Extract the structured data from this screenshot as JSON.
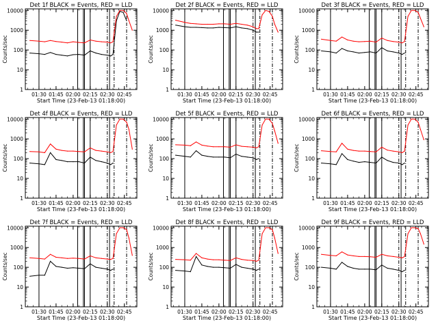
{
  "figure": {
    "xlabel": "Start Time (23-Feb-13 01:18:00)",
    "ylabel": "Counts/sec",
    "tick_labels_x": [
      "01:30",
      "01:45",
      "02:00",
      "02:15",
      "02:30",
      "02:45"
    ],
    "tick_labels_y": [
      "1",
      "10",
      "100",
      "1000",
      "10000"
    ],
    "colors": {
      "events": "#000000",
      "lld": "#ff0000",
      "axes": "#000000",
      "background": "#ffffff"
    }
  },
  "chart_data": [
    {
      "type": "line",
      "title": "Det 1f BLACK = Events, RED = LLD",
      "xlabel": "Start Time (23-Feb-13 01:18:00)",
      "ylabel": "Counts/sec",
      "xlim": [
        "01:18",
        "02:56"
      ],
      "ylim": [
        1,
        12000
      ],
      "yscale": "log",
      "x": [
        "01:22",
        "01:30",
        "01:35",
        "01:40",
        "01:45",
        "01:50",
        "01:55",
        "02:00",
        "02:05",
        "02:10",
        "02:15",
        "02:20",
        "02:25",
        "02:30",
        "02:33",
        "02:35",
        "02:38",
        "02:41",
        "02:44",
        "02:47",
        "02:49",
        "02:52"
      ],
      "series": [
        {
          "name": "Events",
          "values": [
            70,
            65,
            60,
            75,
            60,
            55,
            50,
            58,
            60,
            55,
            90,
            70,
            60,
            55,
            50,
            60,
            3000,
            9000,
            8000,
            3000,
            null,
            null
          ]
        },
        {
          "name": "LLD",
          "values": [
            300,
            280,
            260,
            300,
            270,
            250,
            230,
            260,
            240,
            230,
            320,
            280,
            260,
            250,
            230,
            260,
            5000,
            10000,
            10000,
            7000,
            3000,
            1000
          ]
        }
      ],
      "vlines_solid": [
        "01:30",
        "02:04",
        "02:09",
        "02:10",
        "02:15",
        "02:32"
      ],
      "vlines_dashed": [
        "02:30",
        "02:36",
        "02:47"
      ]
    },
    {
      "type": "line",
      "title": "Det 2f BLACK = Events, RED = LLD",
      "xlabel": "Start Time (23-Feb-13 01:18:00)",
      "ylabel": "Counts/sec",
      "xlim": [
        "01:18",
        "02:56"
      ],
      "ylim": [
        1,
        12000
      ],
      "yscale": "log",
      "x": [
        "01:22",
        "01:30",
        "01:35",
        "01:40",
        "01:45",
        "01:50",
        "01:55",
        "02:00",
        "02:05",
        "02:10",
        "02:15",
        "02:20",
        "02:25",
        "02:30",
        "02:33",
        "02:35",
        "02:38",
        "02:41",
        "02:44",
        "02:47",
        "02:49",
        "02:52"
      ],
      "series": [
        {
          "name": "Events",
          "values": [
            1800,
            1500,
            1400,
            1400,
            1350,
            1300,
            1300,
            1400,
            1350,
            1300,
            1500,
            1300,
            1200,
            1000,
            800,
            800,
            null,
            null,
            null,
            null,
            null,
            null
          ]
        },
        {
          "name": "LLD",
          "values": [
            3200,
            2500,
            2200,
            2100,
            2000,
            2000,
            2000,
            2100,
            2100,
            2000,
            2200,
            2000,
            1800,
            1500,
            1200,
            1200,
            6000,
            10000,
            9000,
            5000,
            2000,
            800
          ]
        }
      ],
      "vlines_solid": [
        "01:30",
        "02:04",
        "02:09",
        "02:10",
        "02:15",
        "02:32"
      ],
      "vlines_dashed": [
        "02:30",
        "02:36",
        "02:47"
      ]
    },
    {
      "type": "line",
      "title": "Det 3f BLACK = Events, RED = LLD",
      "xlabel": "Start Time (23-Feb-13 01:18:00)",
      "ylabel": "Counts/sec",
      "xlim": [
        "01:18",
        "02:56"
      ],
      "ylim": [
        1,
        12000
      ],
      "yscale": "log",
      "x": [
        "01:22",
        "01:30",
        "01:35",
        "01:40",
        "01:45",
        "01:50",
        "01:55",
        "02:00",
        "02:05",
        "02:10",
        "02:15",
        "02:20",
        "02:25",
        "02:30",
        "02:33",
        "02:35",
        "02:38",
        "02:41",
        "02:44",
        "02:47",
        "02:49",
        "02:52"
      ],
      "series": [
        {
          "name": "Events",
          "values": [
            90,
            80,
            70,
            120,
            90,
            80,
            70,
            75,
            80,
            70,
            130,
            90,
            80,
            70,
            60,
            70,
            null,
            null,
            null,
            null,
            null,
            null
          ]
        },
        {
          "name": "LLD",
          "values": [
            350,
            300,
            280,
            450,
            320,
            280,
            260,
            270,
            280,
            250,
            400,
            300,
            270,
            250,
            230,
            270,
            5000,
            10000,
            10000,
            8000,
            4000,
            1500
          ]
        }
      ],
      "vlines_solid": [
        "01:30",
        "02:04",
        "02:09",
        "02:10",
        "02:15",
        "02:32"
      ],
      "vlines_dashed": [
        "02:30",
        "02:36",
        "02:47"
      ]
    },
    {
      "type": "line",
      "title": "Det 4f BLACK = Events, RED = LLD",
      "xlabel": "Start Time (23-Feb-13 01:18:00)",
      "ylabel": "Counts/sec",
      "xlim": [
        "01:18",
        "02:56"
      ],
      "ylim": [
        1,
        12000
      ],
      "yscale": "log",
      "x": [
        "01:22",
        "01:30",
        "01:35",
        "01:40",
        "01:45",
        "01:50",
        "01:55",
        "02:00",
        "02:05",
        "02:10",
        "02:15",
        "02:20",
        "02:25",
        "02:30",
        "02:33",
        "02:35",
        "02:38",
        "02:41",
        "02:44",
        "02:47",
        "02:49",
        "02:52"
      ],
      "series": [
        {
          "name": "Events",
          "values": [
            60,
            55,
            50,
            200,
            90,
            80,
            70,
            70,
            70,
            60,
            120,
            80,
            70,
            60,
            50,
            60,
            null,
            null,
            null,
            null,
            null,
            null
          ]
        },
        {
          "name": "LLD",
          "values": [
            230,
            220,
            200,
            550,
            300,
            260,
            240,
            240,
            230,
            220,
            350,
            260,
            240,
            220,
            200,
            230,
            5000,
            10000,
            10000,
            7000,
            3000,
            300
          ]
        }
      ],
      "vlines_solid": [
        "01:30",
        "02:04",
        "02:09",
        "02:10",
        "02:15",
        "02:32"
      ],
      "vlines_dashed": [
        "02:30",
        "02:36",
        "02:47"
      ]
    },
    {
      "type": "line",
      "title": "Det 5f BLACK = Events, RED = LLD",
      "xlabel": "Start Time (23-Feb-13 01:18:00)",
      "ylabel": "Counts/sec",
      "xlim": [
        "01:18",
        "02:56"
      ],
      "ylim": [
        1,
        12000
      ],
      "yscale": "log",
      "x": [
        "01:22",
        "01:30",
        "01:35",
        "01:40",
        "01:45",
        "01:50",
        "01:55",
        "02:00",
        "02:05",
        "02:10",
        "02:15",
        "02:20",
        "02:25",
        "02:30",
        "02:33",
        "02:35",
        "02:38",
        "02:41",
        "02:44",
        "02:47",
        "02:49",
        "02:52"
      ],
      "series": [
        {
          "name": "Events",
          "values": [
            150,
            130,
            120,
            250,
            150,
            130,
            120,
            120,
            120,
            110,
            170,
            130,
            120,
            110,
            90,
            100,
            null,
            null,
            null,
            null,
            null,
            null
          ]
        },
        {
          "name": "LLD",
          "values": [
            500,
            480,
            450,
            700,
            480,
            430,
            400,
            400,
            400,
            380,
            500,
            420,
            400,
            380,
            350,
            400,
            5000,
            10000,
            10000,
            6000,
            2500,
            600
          ]
        }
      ],
      "vlines_solid": [
        "01:30",
        "02:04",
        "02:09",
        "02:10",
        "02:15",
        "02:32"
      ],
      "vlines_dashed": [
        "02:30",
        "02:36",
        "02:47"
      ]
    },
    {
      "type": "line",
      "title": "Det 6f BLACK = Events, RED = LLD",
      "xlabel": "Start Time (23-Feb-13 01:18:00)",
      "ylabel": "Counts/sec",
      "xlim": [
        "01:18",
        "02:56"
      ],
      "ylim": [
        1,
        12000
      ],
      "yscale": "log",
      "x": [
        "01:22",
        "01:30",
        "01:35",
        "01:40",
        "01:45",
        "01:50",
        "01:55",
        "02:00",
        "02:05",
        "02:10",
        "02:15",
        "02:20",
        "02:25",
        "02:30",
        "02:33",
        "02:35",
        "02:38",
        "02:41",
        "02:44",
        "02:47",
        "02:49",
        "02:52"
      ],
      "series": [
        {
          "name": "Events",
          "values": [
            60,
            55,
            50,
            180,
            90,
            75,
            65,
            70,
            65,
            60,
            120,
            80,
            65,
            60,
            50,
            60,
            null,
            null,
            null,
            null,
            null,
            null
          ]
        },
        {
          "name": "LLD",
          "values": [
            250,
            230,
            220,
            600,
            300,
            260,
            240,
            240,
            230,
            220,
            380,
            270,
            240,
            220,
            200,
            240,
            5000,
            10000,
            10000,
            7000,
            3000,
            900
          ]
        }
      ],
      "vlines_solid": [
        "01:30",
        "02:04",
        "02:09",
        "02:10",
        "02:15",
        "02:32"
      ],
      "vlines_dashed": [
        "02:30",
        "02:36",
        "02:47"
      ]
    },
    {
      "type": "line",
      "title": "Det 7f BLACK = Events, RED = LLD",
      "xlabel": "Start Time (23-Feb-13 01:18:00)",
      "ylabel": "Counts/sec",
      "xlim": [
        "01:18",
        "02:56"
      ],
      "ylim": [
        1,
        12000
      ],
      "yscale": "log",
      "x": [
        "01:22",
        "01:30",
        "01:35",
        "01:40",
        "01:45",
        "01:50",
        "01:55",
        "02:00",
        "02:05",
        "02:10",
        "02:15",
        "02:20",
        "02:25",
        "02:30",
        "02:33",
        "02:35",
        "02:38",
        "02:41",
        "02:44",
        "02:47",
        "02:49",
        "02:52"
      ],
      "series": [
        {
          "name": "Events",
          "values": [
            35,
            40,
            40,
            200,
            110,
            100,
            90,
            95,
            90,
            85,
            150,
            100,
            90,
            80,
            70,
            80,
            null,
            null,
            null,
            null,
            null,
            null
          ]
        },
        {
          "name": "LLD",
          "values": [
            300,
            280,
            260,
            450,
            320,
            300,
            280,
            290,
            280,
            260,
            380,
            300,
            280,
            260,
            250,
            280,
            5000,
            10000,
            10000,
            8000,
            3000,
            400
          ]
        }
      ],
      "vlines_solid": [
        "01:30",
        "02:04",
        "02:09",
        "02:10",
        "02:15",
        "02:32"
      ],
      "vlines_dashed": [
        "02:30",
        "02:36",
        "02:47"
      ]
    },
    {
      "type": "line",
      "title": "Det 8f BLACK = Events, RED = LLD",
      "xlabel": "Start Time (23-Feb-13 01:18:00)",
      "ylabel": "Counts/sec",
      "xlim": [
        "01:18",
        "02:56"
      ],
      "ylim": [
        1,
        12000
      ],
      "yscale": "log",
      "x": [
        "01:22",
        "01:30",
        "01:35",
        "01:40",
        "01:45",
        "01:50",
        "01:55",
        "02:00",
        "02:05",
        "02:10",
        "02:15",
        "02:20",
        "02:25",
        "02:30",
        "02:33",
        "02:35",
        "02:38",
        "02:41",
        "02:44",
        "02:47",
        "02:49",
        "02:52"
      ],
      "series": [
        {
          "name": "Events",
          "values": [
            70,
            65,
            60,
            350,
            130,
            110,
            100,
            100,
            95,
            90,
            140,
            100,
            90,
            80,
            70,
            80,
            null,
            null,
            null,
            null,
            null,
            null
          ]
        },
        {
          "name": "LLD",
          "values": [
            250,
            240,
            230,
            500,
            300,
            260,
            240,
            240,
            230,
            220,
            300,
            250,
            230,
            220,
            200,
            230,
            5000,
            10000,
            10000,
            8000,
            3000,
            500
          ]
        }
      ],
      "vlines_solid": [
        "01:30",
        "02:04",
        "02:09",
        "02:10",
        "02:15",
        "02:32"
      ],
      "vlines_dashed": [
        "02:30",
        "02:36",
        "02:47"
      ]
    },
    {
      "type": "line",
      "title": "Det 9f BLACK = Events, RED = LLD",
      "xlabel": "Start Time (23-Feb-13 01:18:00)",
      "ylabel": "Counts/sec",
      "xlim": [
        "01:18",
        "02:56"
      ],
      "ylim": [
        1,
        12000
      ],
      "yscale": "log",
      "x": [
        "01:22",
        "01:30",
        "01:35",
        "01:40",
        "01:45",
        "01:50",
        "01:55",
        "02:00",
        "02:05",
        "02:10",
        "02:15",
        "02:20",
        "02:25",
        "02:30",
        "02:33",
        "02:35",
        "02:38",
        "02:41",
        "02:44",
        "02:47",
        "02:49",
        "02:52"
      ],
      "series": [
        {
          "name": "Events",
          "values": [
            100,
            90,
            80,
            180,
            110,
            90,
            80,
            80,
            80,
            75,
            130,
            90,
            80,
            70,
            60,
            70,
            null,
            null,
            null,
            null,
            null,
            null
          ]
        },
        {
          "name": "LLD",
          "values": [
            450,
            400,
            380,
            600,
            420,
            380,
            350,
            350,
            340,
            320,
            450,
            380,
            350,
            320,
            300,
            350,
            5000,
            10000,
            10000,
            9000,
            5000,
            1500
          ]
        }
      ],
      "vlines_solid": [
        "01:30",
        "02:04",
        "02:09",
        "02:10",
        "02:15",
        "02:32"
      ],
      "vlines_dashed": [
        "02:30",
        "02:36",
        "02:47"
      ]
    }
  ]
}
